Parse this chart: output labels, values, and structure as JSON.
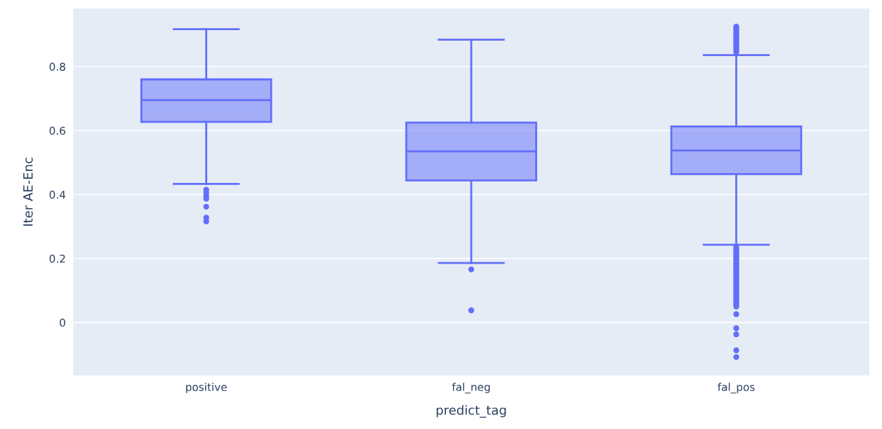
{
  "chart_data": {
    "type": "box",
    "xlabel": "predict_tag",
    "ylabel": "Iter AE-Enc",
    "categories": [
      "positive",
      "fal_neg",
      "fal_pos"
    ],
    "series": [
      {
        "color": "#636efa",
        "boxes": [
          {
            "low": 0.433,
            "q1": 0.627,
            "median": 0.695,
            "q3": 0.76,
            "high": 0.917,
            "outliers": [
              0.415,
              0.405,
              0.395,
              0.387,
              0.362,
              0.328,
              0.316
            ]
          },
          {
            "low": 0.186,
            "q1": 0.444,
            "median": 0.535,
            "q3": 0.625,
            "high": 0.884,
            "outliers": [
              0.166,
              0.038
            ]
          },
          {
            "low": 0.243,
            "q1": 0.464,
            "median": 0.538,
            "q3": 0.613,
            "high": 0.836,
            "outliers": [
              0.845,
              0.85,
              0.855,
              0.86,
              0.865,
              0.87,
              0.875,
              0.88,
              0.885,
              0.89,
              0.895,
              0.9,
              0.905,
              0.91,
              0.915,
              0.92,
              0.925,
              0.235,
              0.23,
              0.225,
              0.22,
              0.215,
              0.21,
              0.205,
              0.2,
              0.195,
              0.19,
              0.185,
              0.18,
              0.175,
              0.17,
              0.165,
              0.16,
              0.155,
              0.15,
              0.145,
              0.14,
              0.135,
              0.13,
              0.125,
              0.12,
              0.115,
              0.11,
              0.105,
              0.1,
              0.095,
              0.09,
              0.085,
              0.08,
              0.075,
              0.07,
              0.065,
              0.06,
              0.055,
              0.05,
              0.026,
              -0.018,
              -0.037,
              -0.087,
              -0.108
            ]
          }
        ]
      }
    ],
    "ylim": [
      -0.164,
      0.98
    ],
    "yticks": [
      0,
      0.2,
      0.4,
      0.6,
      0.8
    ],
    "grid": "y"
  }
}
